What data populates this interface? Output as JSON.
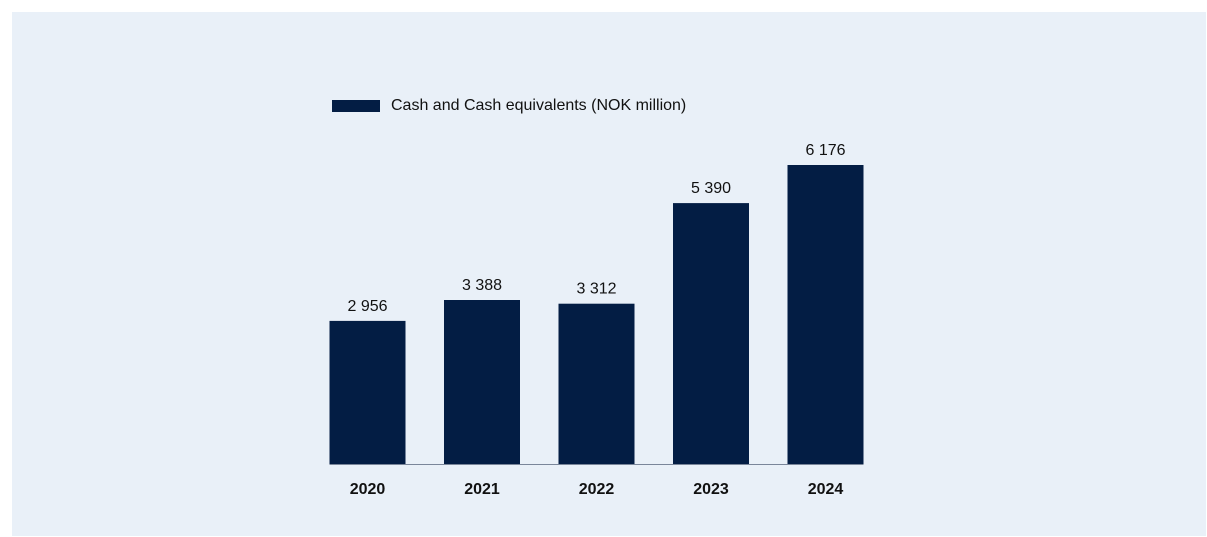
{
  "colors": {
    "panel_background": "#e9f0f8",
    "bar": "#031d44",
    "text": "#111111",
    "baseline": "#7a869a"
  },
  "legend": {
    "label": "Cash and Cash equivalents (NOK million)"
  },
  "chart_data": {
    "type": "bar",
    "categories": [
      "2020",
      "2021",
      "2022",
      "2023",
      "2024"
    ],
    "series": [
      {
        "name": "Cash and Cash equivalents (NOK million)",
        "values": [
          2956,
          3388,
          3312,
          5390,
          6176
        ],
        "labels": [
          "2 956",
          "3 388",
          "3 312",
          "5 390",
          "6 176"
        ]
      }
    ],
    "ylim": [
      0,
      6176
    ],
    "grid": false,
    "legend_position": "top-left",
    "xlabel": "",
    "ylabel": ""
  }
}
